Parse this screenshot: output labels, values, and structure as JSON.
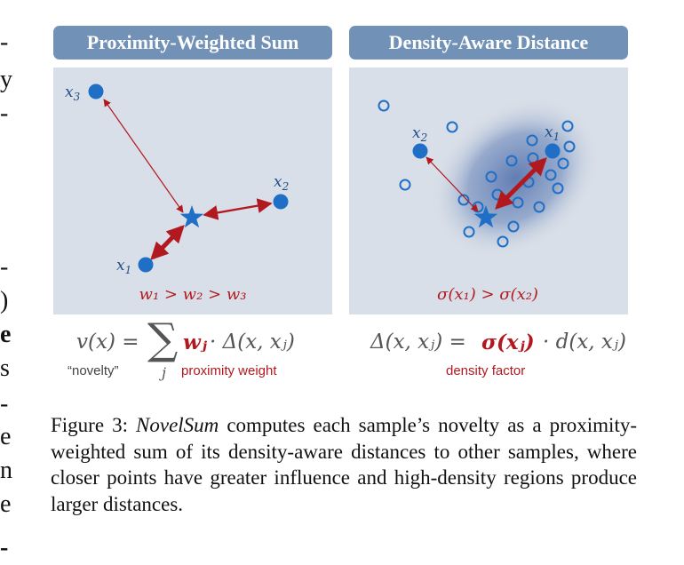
{
  "figure": {
    "left_panel": {
      "title": "Proximity-Weighted Sum",
      "points": [
        {
          "label_base": "x",
          "label_sub": "3"
        },
        {
          "label_base": "x",
          "label_sub": "2"
        },
        {
          "label_base": "x",
          "label_sub": "1"
        }
      ],
      "relation": "w₁ > w₂ > w₃"
    },
    "right_panel": {
      "title": "Density-Aware Distance",
      "points": [
        {
          "label_base": "x",
          "label_sub": "2"
        },
        {
          "label_base": "x",
          "label_sub": "1"
        }
      ],
      "relation": "σ(x₁) > σ(x₂)"
    },
    "formula_left": {
      "lhs": "v(x) =",
      "sum_symbol": "∑",
      "sum_index": "j",
      "weight": "wⱼ",
      "rest": "· Δ(x, xⱼ)",
      "novelty_label": "“novelty”",
      "weight_label": "proximity weight"
    },
    "formula_right": {
      "lhs": "Δ(x, xⱼ) =",
      "factor": "σ(xⱼ)",
      "rest": "· d(x, xⱼ)",
      "factor_label": "density factor"
    },
    "colors": {
      "header_bg": "#7291b6",
      "panel_bg": "#d9dfe8",
      "point": "#1f6fc6",
      "arrow": "#b2191f",
      "emphasis_text": "#b2191f"
    }
  },
  "caption": {
    "prefix": "Figure 3: ",
    "name": "NovelSum",
    "body": " computes each sample’s novelty as a proximity-weighted sum of its density-aware distances to other samples, where closer points have greater influence and high-density regions produce larger distances."
  }
}
